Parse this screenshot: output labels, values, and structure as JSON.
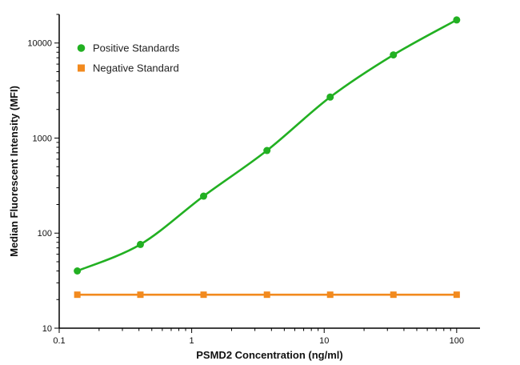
{
  "chart_data": {
    "type": "scatter",
    "xlabel": "PSMD2 Concentration (ng/ml)",
    "ylabel": "Median Fluorescent Intensity (MFI)",
    "xscale": "log",
    "yscale": "log",
    "xlim": [
      0.1,
      150
    ],
    "ylim": [
      10,
      20000
    ],
    "xticks": [
      0.1,
      1,
      10,
      100
    ],
    "xtick_labels": [
      "0.1",
      "1",
      "10",
      "100"
    ],
    "yticks": [
      10,
      100,
      1000,
      10000
    ],
    "ytick_labels": [
      "10",
      "100",
      "1000",
      "10000"
    ],
    "grid": false,
    "legend_position": "top-left",
    "series": [
      {
        "name": "Positive Standards",
        "color": "#22b022",
        "marker": "circle",
        "fit": "smooth-curve",
        "x": [
          0.137,
          0.41,
          1.23,
          3.7,
          11.1,
          33.3,
          100
        ],
        "y": [
          40,
          76,
          245,
          740,
          2700,
          7500,
          17500
        ]
      },
      {
        "name": "Negative Standard",
        "color": "#f28a1e",
        "marker": "square",
        "fit": "line",
        "x": [
          0.137,
          0.41,
          1.23,
          3.7,
          11.1,
          33.3,
          100
        ],
        "y": [
          22.5,
          22.5,
          22.5,
          22.5,
          22.5,
          22.5,
          22.5
        ]
      }
    ]
  }
}
